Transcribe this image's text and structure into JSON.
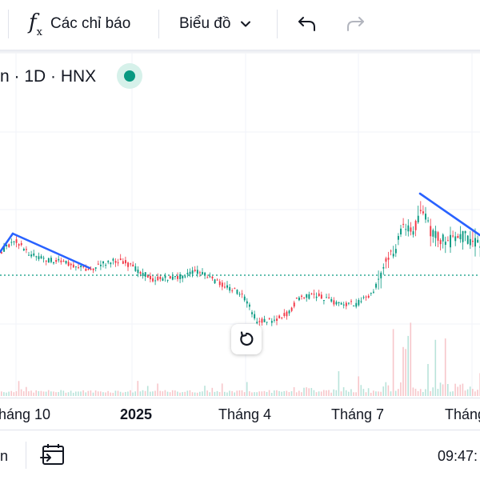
{
  "toolbar": {
    "indicators_label": "Các chỉ báo",
    "chart_type_label": "Biểu đồ",
    "icons": [
      "function-icon",
      "chevron-down-icon",
      "undo-icon",
      "redo-icon"
    ]
  },
  "legend": {
    "text": "n · 1D · HNX",
    "status_color": "#089981"
  },
  "chart_data": {
    "type": "candlestick",
    "x_ticks": [
      "háng 10",
      "2025",
      "Tháng 4",
      "Tháng 7",
      "Tháng"
    ],
    "price_line_style": "dotted",
    "colors": {
      "up": "#089981",
      "down": "#f23645",
      "trendline": "#2962ff"
    },
    "trendlines": [
      {
        "from_date": "2024-09-10",
        "from_price": 0.93,
        "to_date": "2024-11-05",
        "to_price": 0.83
      },
      {
        "from_date": "2025-08-12",
        "from_price": 1.06,
        "to_date": "2025-10-05",
        "to_price": 0.96
      }
    ],
    "grid": true
  },
  "time_axis": {
    "t1": "háng 10",
    "t2": "2025",
    "t3": "Tháng 4",
    "t4": "Tháng 7",
    "t5": "Tháng"
  },
  "bottom_bar": {
    "left_text": "n",
    "time_text": "09:47:"
  }
}
